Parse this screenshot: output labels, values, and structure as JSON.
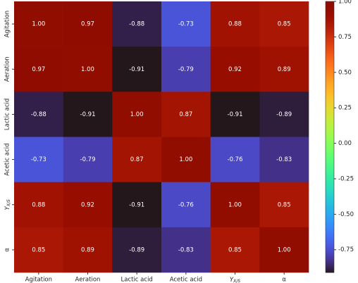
{
  "chart_data": {
    "type": "heatmap",
    "rows": [
      "Agitation",
      "Aeration",
      "Lactic acid",
      "Acetic acid",
      {
        "main": "Y",
        "sub": "X/S"
      },
      "α"
    ],
    "columns": [
      "Agitation",
      "Aeration",
      "Lactic acid",
      "Acetic acid",
      {
        "main": "Y",
        "sub": "X/S"
      },
      "α"
    ],
    "values": [
      [
        1.0,
        0.97,
        -0.88,
        -0.73,
        0.88,
        0.85
      ],
      [
        0.97,
        1.0,
        -0.91,
        -0.79,
        0.92,
        0.89
      ],
      [
        -0.88,
        -0.91,
        1.0,
        0.87,
        -0.91,
        -0.89
      ],
      [
        -0.73,
        -0.79,
        0.87,
        1.0,
        -0.76,
        -0.83
      ],
      [
        0.88,
        0.92,
        -0.91,
        -0.76,
        1.0,
        0.85
      ],
      [
        0.85,
        0.89,
        -0.89,
        -0.83,
        0.85,
        1.0
      ]
    ],
    "value_labels": [
      [
        "1.00",
        "0.97",
        "-0.88",
        "-0.73",
        "0.88",
        "0.85"
      ],
      [
        "0.97",
        "1.00",
        "-0.91",
        "-0.79",
        "0.92",
        "0.89"
      ],
      [
        "-0.88",
        "-0.91",
        "1.00",
        "0.87",
        "-0.91",
        "-0.89"
      ],
      [
        "-0.73",
        "-0.79",
        "0.87",
        "1.00",
        "-0.76",
        "-0.83"
      ],
      [
        "0.88",
        "0.92",
        "-0.91",
        "-0.76",
        "1.00",
        "0.85"
      ],
      [
        "0.85",
        "0.89",
        "-0.89",
        "-0.83",
        "0.85",
        "1.00"
      ]
    ],
    "colormap": "turbo",
    "clim": [
      -0.91,
      1.0
    ],
    "cticks": [
      {
        "value": 1.0,
        "label": "1.00"
      },
      0.75,
      {
        "value": 0.5,
        "label": "0.50"
      },
      0.25,
      {
        "value": 0.0,
        "label": "0.00"
      },
      -0.25,
      {
        "value": -0.5,
        "label": "-0.50"
      },
      -0.75
    ]
  }
}
